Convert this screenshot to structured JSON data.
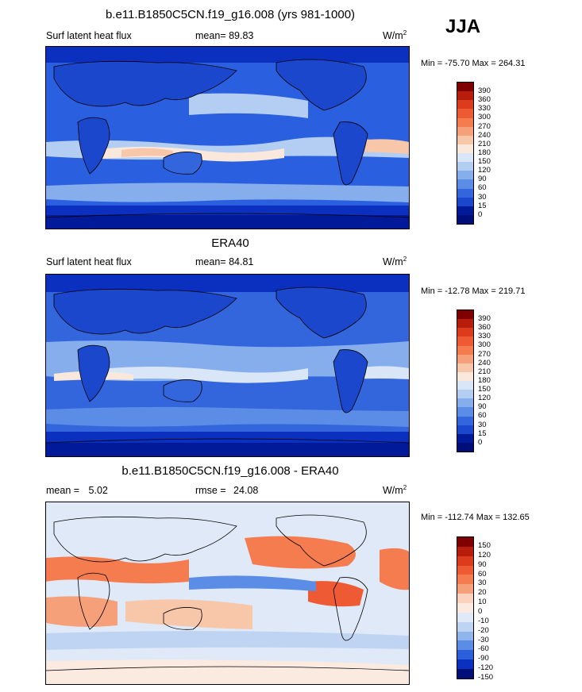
{
  "season": "JJA",
  "units_main": "W/m",
  "units_sup": "2",
  "panels": [
    {
      "title": "b.e11.B1850C5CN.f19_g16.008 (yrs 981-1000)",
      "left_label": "Surf latent heat flux",
      "mean_label": "mean=",
      "mean_value": "89.83",
      "rmse_label": "",
      "rmse_value": "",
      "minmax": "Min = -75.70 Max = 264.31",
      "levels": [
        "390",
        "360",
        "330",
        "300",
        "270",
        "240",
        "210",
        "180",
        "150",
        "120",
        "90",
        "60",
        "30",
        "15",
        "0"
      ]
    },
    {
      "title": "ERA40",
      "left_label": "Surf latent heat flux",
      "mean_label": "mean=",
      "mean_value": "84.81",
      "rmse_label": "",
      "rmse_value": "",
      "minmax": "Min = -12.78 Max = 219.71",
      "levels": [
        "390",
        "360",
        "330",
        "300",
        "270",
        "240",
        "210",
        "180",
        "150",
        "120",
        "90",
        "60",
        "30",
        "15",
        "0"
      ]
    },
    {
      "title": "b.e11.B1850C5CN.f19_g16.008 - ERA40",
      "left_label": "mean =",
      "mean_label": "",
      "mean_value": "5.02",
      "rmse_label": "rmse =",
      "rmse_value": "24.08",
      "minmax": "Min = -112.74 Max = 132.65",
      "levels": [
        "150",
        "120",
        "90",
        "60",
        "30",
        "20",
        "10",
        "0",
        "-10",
        "-20",
        "-30",
        "-60",
        "-90",
        "-120",
        "-150"
      ]
    }
  ],
  "colors": {
    "flux_scale": [
      "#7f0000",
      "#b81d0c",
      "#dd3b1e",
      "#ee5a33",
      "#f47c4e",
      "#f6a07a",
      "#f8c7aa",
      "#fbe8dc",
      "#d9e6f7",
      "#b3cef2",
      "#86aeec",
      "#5b8ce6",
      "#3366dd",
      "#1a47cc",
      "#001a99",
      "#000e7a"
    ],
    "diff_scale": [
      "#7f0000",
      "#b81d0c",
      "#dd3b1e",
      "#ee5a33",
      "#f47c4e",
      "#f6a07a",
      "#fad2bd",
      "#fbeae0",
      "#dfe9f7",
      "#bfd4f2",
      "#90b4ec",
      "#5b8ce6",
      "#2c5fdc",
      "#0b2fbf",
      "#000e7a"
    ]
  }
}
